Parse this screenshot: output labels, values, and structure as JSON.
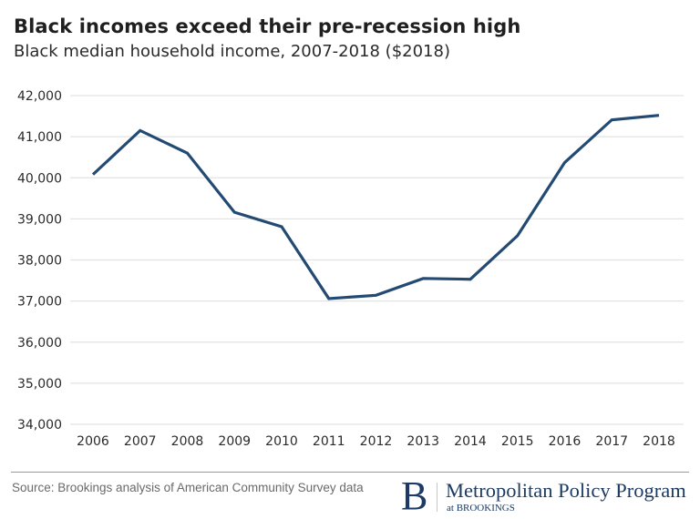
{
  "header": {
    "title": "Black incomes exceed their pre-recession high",
    "subtitle": "Black median household income, 2007-2018 ($2018)"
  },
  "chart_data": {
    "type": "line",
    "title": "Black incomes exceed their pre-recession high",
    "subtitle": "Black median household income, 2007-2018 ($2018)",
    "xlabel": "",
    "ylabel": "",
    "x": [
      "2006",
      "2007",
      "2008",
      "2009",
      "2010",
      "2011",
      "2012",
      "2013",
      "2014",
      "2015",
      "2016",
      "2017",
      "2018"
    ],
    "series": [
      {
        "name": "Black median household income",
        "color": "#234a73",
        "values": [
          40080,
          41150,
          40600,
          39160,
          38810,
          37060,
          37140,
          37550,
          37530,
          38590,
          40370,
          41410,
          41520
        ]
      }
    ],
    "ylim": [
      34000,
      42000
    ],
    "yticks": [
      34000,
      35000,
      36000,
      37000,
      38000,
      39000,
      40000,
      41000,
      42000
    ],
    "ytick_labels": [
      "34,000",
      "35,000",
      "36,000",
      "37,000",
      "38,000",
      "39,000",
      "40,000",
      "41,000",
      "42,000"
    ],
    "grid": true,
    "legend": "none",
    "colors": {
      "line": "#234a73",
      "grid": "#e3e3e3"
    }
  },
  "footer": {
    "source": "Source: Brookings analysis of American Community Survey data",
    "logo_letter": "B",
    "program_name": "Metropolitan Policy Program",
    "program_sub": "at BROOKINGS"
  }
}
